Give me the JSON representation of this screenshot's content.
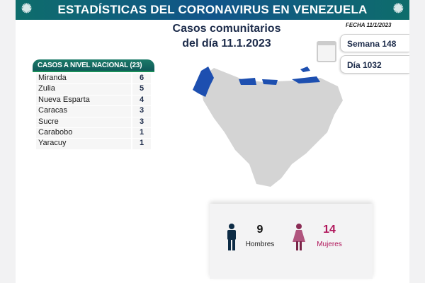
{
  "banner": {
    "title": "ESTADÍSTICAS DEL CORONAVIRUS EN VENEZUELA"
  },
  "header": {
    "line1": "Casos comunitarios",
    "line2": "del día 11.1.2023",
    "fecha": "FECHA 11/1/2023"
  },
  "info": {
    "semana": "Semana 148",
    "dia": "Día 1032"
  },
  "table": {
    "header": "CASOS A NIVEL NACIONAL  (23)",
    "rows": [
      {
        "state": "Miranda",
        "cases": "6"
      },
      {
        "state": "Zulia",
        "cases": "5"
      },
      {
        "state": "Nueva Esparta",
        "cases": "4"
      },
      {
        "state": "Caracas",
        "cases": "3"
      },
      {
        "state": "Sucre",
        "cases": "3"
      },
      {
        "state": "Carabobo",
        "cases": "1"
      },
      {
        "state": "Yaracuy",
        "cases": "1"
      }
    ]
  },
  "gender": {
    "men_count": "9",
    "men_label": "Hombres",
    "women_count": "14",
    "women_label": "Mujeres"
  },
  "colors": {
    "banner": "#12548a",
    "highlight": "#1d4fb0",
    "men": "#0d2b45",
    "women": "#b0155a"
  }
}
